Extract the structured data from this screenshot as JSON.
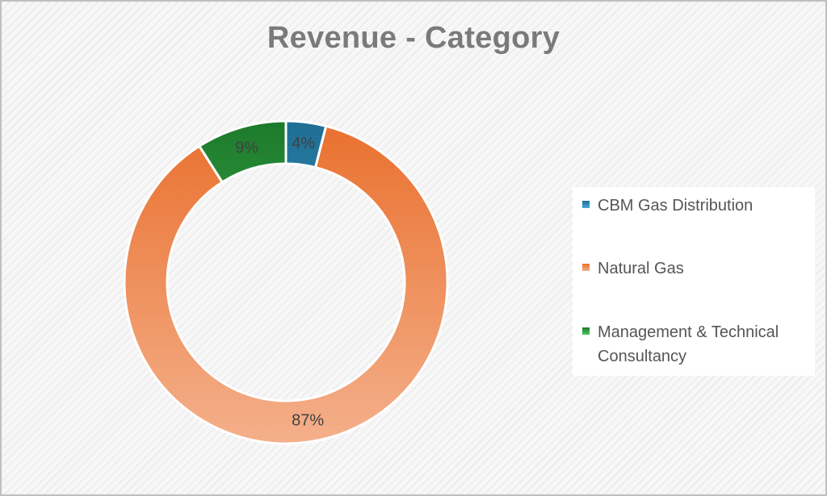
{
  "chart_data": {
    "type": "pie",
    "subtype": "donut",
    "title": "Revenue - Category",
    "legend_position": "right",
    "series": [
      {
        "name": "CBM Gas Distribution",
        "value": 4,
        "label": "4%",
        "color_top": "#1f6e94",
        "color_bottom": "#44a9dc"
      },
      {
        "name": "Natural Gas",
        "value": 87,
        "label": "87%",
        "color_top": "#e9702e",
        "color_bottom": "#f4b08b"
      },
      {
        "name": "Management & Technical Consultancy",
        "value": 9,
        "label": "9%",
        "color_top": "#1d7a2c",
        "color_bottom": "#4cc85a"
      }
    ]
  }
}
